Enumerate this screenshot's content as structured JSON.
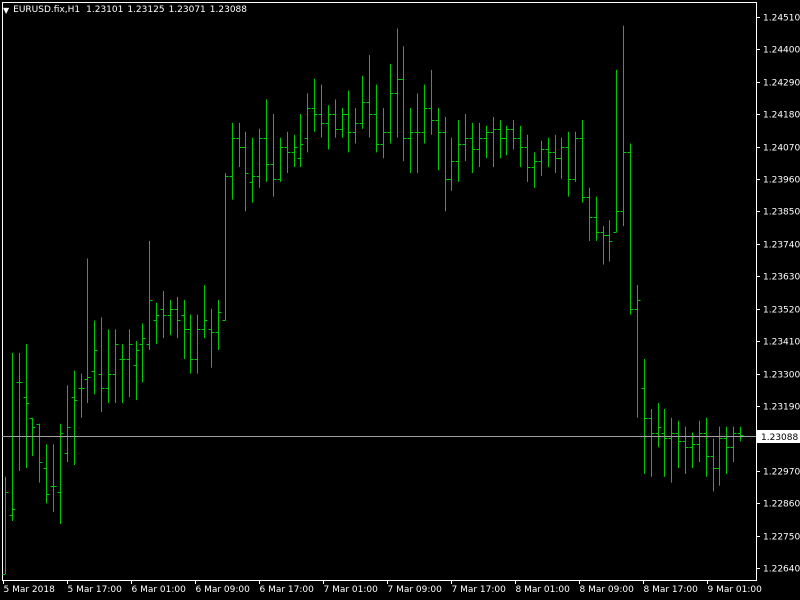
{
  "header": {
    "symbol_label": "EURUSD.fix,H1",
    "open": "1.23101",
    "high": "1.23125",
    "low": "1.23071",
    "close": "1.23088"
  },
  "current_price_label": "1.23088",
  "colors": {
    "background": "#000000",
    "bar": "#00c800",
    "axis": "#ffffff",
    "price_line": "#a0a0a0",
    "price_box_bg": "#ffffff",
    "price_box_text": "#000000"
  },
  "chart_data": {
    "type": "ohlc-bar",
    "ylim": [
      1.226,
      1.2456
    ],
    "y_ticks": [
      "1.24510",
      "1.24400",
      "1.24290",
      "1.24180",
      "1.24070",
      "1.23960",
      "1.23850",
      "1.23740",
      "1.23630",
      "1.23520",
      "1.23410",
      "1.23300",
      "1.23190",
      "1.23088",
      "1.22970",
      "1.22860",
      "1.22750",
      "1.22640"
    ],
    "x_ticks": [
      "5 Mar 2018",
      "5 Mar 17:00",
      "6 Mar 01:00",
      "6 Mar 09:00",
      "6 Mar 17:00",
      "7 Mar 01:00",
      "7 Mar 09:00",
      "7 Mar 17:00",
      "8 Mar 01:00",
      "8 Mar 09:00",
      "8 Mar 17:00",
      "9 Mar 01:00"
    ],
    "current_price": 1.23088,
    "bars": [
      [
        1.2262,
        1.2295,
        1.2262,
        1.229
      ],
      [
        1.2282,
        1.2337,
        1.228,
        1.2284
      ],
      [
        1.2327,
        1.2337,
        1.2297,
        1.2327
      ],
      [
        1.2322,
        1.234,
        1.2298,
        1.232
      ],
      [
        1.2315,
        1.2315,
        1.2302,
        1.2312
      ],
      [
        1.2313,
        1.2313,
        1.2293,
        1.23
      ],
      [
        1.2298,
        1.2306,
        1.2286,
        1.2289
      ],
      [
        1.2292,
        1.2306,
        1.2283,
        1.2292
      ],
      [
        1.229,
        1.2313,
        1.2279,
        1.231
      ],
      [
        1.2303,
        1.2326,
        1.23,
        1.2312
      ],
      [
        1.2322,
        1.2331,
        1.2299,
        1.2321
      ],
      [
        1.2325,
        1.233,
        1.2315,
        1.2325
      ],
      [
        1.2328,
        1.2369,
        1.232,
        1.2329
      ],
      [
        1.2331,
        1.2348,
        1.2323,
        1.2338
      ],
      [
        1.233,
        1.2349,
        1.2317,
        1.2325
      ],
      [
        1.2325,
        1.2345,
        1.232,
        1.233
      ],
      [
        1.233,
        1.2345,
        1.232,
        1.234
      ],
      [
        1.2335,
        1.234,
        1.232,
        1.2335
      ],
      [
        1.2335,
        1.2345,
        1.2322,
        1.234
      ],
      [
        1.2333,
        1.2341,
        1.2321,
        1.2338
      ],
      [
        1.234,
        1.2347,
        1.2327,
        1.2342
      ],
      [
        1.234,
        1.2375,
        1.2338,
        1.2355
      ],
      [
        1.2348,
        1.2354,
        1.234,
        1.235
      ],
      [
        1.2352,
        1.2358,
        1.2342,
        1.235
      ],
      [
        1.235,
        1.2355,
        1.2343,
        1.2352
      ],
      [
        1.2352,
        1.2356,
        1.2342,
        1.2348
      ],
      [
        1.235,
        1.2355,
        1.2335,
        1.2345
      ],
      [
        1.2345,
        1.235,
        1.233,
        1.2335
      ],
      [
        1.2335,
        1.235,
        1.233,
        1.2345
      ],
      [
        1.2345,
        1.236,
        1.2342,
        1.2348
      ],
      [
        1.2345,
        1.2352,
        1.2332,
        1.2344
      ],
      [
        1.2344,
        1.2355,
        1.2338,
        1.2351
      ],
      [
        1.2348,
        1.2398,
        1.2348,
        1.2397
      ],
      [
        1.2397,
        1.2415,
        1.2389,
        1.241
      ],
      [
        1.241,
        1.2415,
        1.24,
        1.2407
      ],
      [
        1.2407,
        1.2412,
        1.2385,
        1.2398
      ],
      [
        1.2395,
        1.241,
        1.2388,
        1.2397
      ],
      [
        1.2397,
        1.2413,
        1.2393,
        1.241
      ],
      [
        1.241,
        1.2423,
        1.2395,
        1.2401
      ],
      [
        1.2401,
        1.2418,
        1.239,
        1.2396
      ],
      [
        1.2396,
        1.241,
        1.2395,
        1.2407
      ],
      [
        1.2407,
        1.2412,
        1.2398,
        1.2405
      ],
      [
        1.2405,
        1.2411,
        1.24,
        1.2407
      ],
      [
        1.2403,
        1.2418,
        1.24,
        1.2408
      ],
      [
        1.241,
        1.2425,
        1.2405,
        1.242
      ],
      [
        1.242,
        1.243,
        1.2412,
        1.2418
      ],
      [
        1.2418,
        1.2428,
        1.241,
        1.2415
      ],
      [
        1.2415,
        1.2421,
        1.2406,
        1.2418
      ],
      [
        1.2418,
        1.2423,
        1.241,
        1.2413
      ],
      [
        1.2413,
        1.242,
        1.241,
        1.2418
      ],
      [
        1.2418,
        1.2426,
        1.2405,
        1.2412
      ],
      [
        1.2412,
        1.242,
        1.2408,
        1.2415
      ],
      [
        1.2415,
        1.2431,
        1.2413,
        1.2422
      ],
      [
        1.2422,
        1.2438,
        1.241,
        1.2418
      ],
      [
        1.2418,
        1.2428,
        1.2405,
        1.2408
      ],
      [
        1.2408,
        1.242,
        1.2403,
        1.2412
      ],
      [
        1.2412,
        1.2435,
        1.2408,
        1.2425
      ],
      [
        1.2425,
        1.2447,
        1.241,
        1.243
      ],
      [
        1.243,
        1.2441,
        1.2402,
        1.241
      ],
      [
        1.241,
        1.242,
        1.2398,
        1.2412
      ],
      [
        1.2412,
        1.2425,
        1.2398,
        1.2412
      ],
      [
        1.2412,
        1.2428,
        1.2408,
        1.242
      ],
      [
        1.242,
        1.2433,
        1.2411,
        1.2416
      ],
      [
        1.2416,
        1.242,
        1.2399,
        1.2412
      ],
      [
        1.2412,
        1.2417,
        1.2385,
        1.2396
      ],
      [
        1.2396,
        1.241,
        1.2392,
        1.2402
      ],
      [
        1.2402,
        1.2416,
        1.2395,
        1.2408
      ],
      [
        1.2408,
        1.2418,
        1.2402,
        1.241
      ],
      [
        1.241,
        1.2415,
        1.2398,
        1.2406
      ],
      [
        1.2406,
        1.2415,
        1.24,
        1.241
      ],
      [
        1.241,
        1.2414,
        1.2403,
        1.2412
      ],
      [
        1.2412,
        1.2417,
        1.24,
        1.2413
      ],
      [
        1.2413,
        1.2416,
        1.2403,
        1.241
      ],
      [
        1.241,
        1.2414,
        1.2404,
        1.2413
      ],
      [
        1.2413,
        1.2416,
        1.2406,
        1.241
      ],
      [
        1.241,
        1.2414,
        1.24,
        1.2407
      ],
      [
        1.2407,
        1.2411,
        1.2395,
        1.24
      ],
      [
        1.24,
        1.2405,
        1.2393,
        1.2402
      ],
      [
        1.2402,
        1.2409,
        1.2397,
        1.2406
      ],
      [
        1.2406,
        1.241,
        1.24,
        1.2405
      ],
      [
        1.2405,
        1.2411,
        1.2398,
        1.2403
      ],
      [
        1.2403,
        1.241,
        1.2396,
        1.2407
      ],
      [
        1.2407,
        1.2412,
        1.239,
        1.2396
      ],
      [
        1.2396,
        1.2412,
        1.2395,
        1.241
      ],
      [
        1.241,
        1.2416,
        1.2388,
        1.239
      ],
      [
        1.239,
        1.2393,
        1.2375,
        1.2383
      ],
      [
        1.2383,
        1.239,
        1.2375,
        1.2378
      ],
      [
        1.2378,
        1.238,
        1.2367,
        1.2377
      ],
      [
        1.2377,
        1.2382,
        1.2368,
        1.2375
      ],
      [
        1.2378,
        1.2433,
        1.2378,
        1.2385
      ],
      [
        1.2385,
        1.2448,
        1.238,
        1.2405
      ],
      [
        1.2405,
        1.2408,
        1.235,
        1.2352
      ],
      [
        1.2352,
        1.236,
        1.2315,
        1.2355
      ],
      [
        1.2325,
        1.2335,
        1.2296,
        1.2315
      ],
      [
        1.2315,
        1.2318,
        1.2295,
        1.231
      ],
      [
        1.231,
        1.232,
        1.2305,
        1.2312
      ],
      [
        1.231,
        1.2318,
        1.2295,
        1.2308
      ],
      [
        1.2308,
        1.2315,
        1.2293,
        1.231
      ],
      [
        1.231,
        1.2314,
        1.2298,
        1.2307
      ],
      [
        1.2307,
        1.2312,
        1.2296,
        1.2305
      ],
      [
        1.2305,
        1.231,
        1.2298,
        1.2306
      ],
      [
        1.2306,
        1.2314,
        1.23,
        1.231
      ],
      [
        1.231,
        1.2315,
        1.2295,
        1.2302
      ],
      [
        1.2302,
        1.2308,
        1.229,
        1.2298
      ],
      [
        1.2298,
        1.2312,
        1.2292,
        1.2308
      ],
      [
        1.2308,
        1.2312,
        1.2296,
        1.2305
      ],
      [
        1.2305,
        1.2312,
        1.23,
        1.231
      ],
      [
        1.231,
        1.2312,
        1.2307,
        1.2309
      ]
    ]
  }
}
